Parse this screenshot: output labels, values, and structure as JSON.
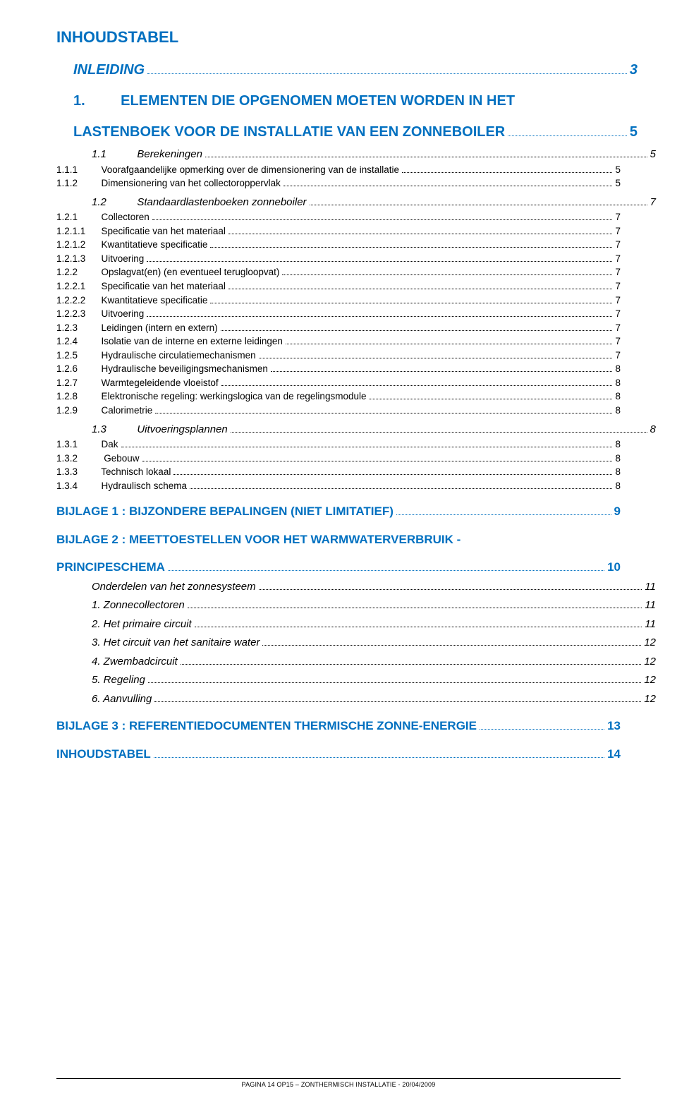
{
  "title": "INHOUDSTABEL",
  "footer": "PAGINA 14 OP15 – ZONTHERMISCH INSTALLATIE - 20/04/2009",
  "colors": {
    "accent": "#0070c0",
    "text": "#000000",
    "background": "#ffffff"
  },
  "toc": [
    {
      "cls": "lvl-h1 blue italic",
      "num": "",
      "label": "INLEIDING",
      "page": "3",
      "leaderBlue": true
    },
    {
      "cls": "lvl-h1 blue",
      "num": "1.",
      "label": "ELEMENTEN DIE OPGENOMEN MOETEN WORDEN IN HET",
      "nobreak": true
    },
    {
      "cls": "lvl-h1 blue",
      "num": "",
      "label": "LASTENBOEK VOOR DE INSTALLATIE VAN EEN ZONNEBOILER",
      "page": "5",
      "leaderBlue": true
    },
    {
      "cls": "lvl-h2 italic",
      "num": "1.1",
      "label": "Berekeningen",
      "page": "5"
    },
    {
      "cls": "lvl-body",
      "num": "1.1.1",
      "label": "Voorafgaandelijke opmerking over de dimensionering van de installatie",
      "page": "5"
    },
    {
      "cls": "lvl-body",
      "num": "1.1.2",
      "label": "Dimensionering van het collectoroppervlak",
      "page": "5"
    },
    {
      "cls": "lvl-h2 italic",
      "num": "1.2",
      "label": "Standaardlastenboeken zonneboiler",
      "page": "7"
    },
    {
      "cls": "lvl-body",
      "num": "1.2.1",
      "label": "Collectoren",
      "page": "7"
    },
    {
      "cls": "lvl-body",
      "num": "1.2.1.1",
      "label": "Specificatie van het materiaal",
      "page": "7"
    },
    {
      "cls": "lvl-body",
      "num": "1.2.1.2",
      "label": "Kwantitatieve specificatie",
      "page": "7"
    },
    {
      "cls": "lvl-body",
      "num": "1.2.1.3",
      "label": "Uitvoering",
      "page": "7"
    },
    {
      "cls": "lvl-body",
      "num": "1.2.2",
      "label": "Opslagvat(en) (en eventueel terugloopvat)",
      "page": "7"
    },
    {
      "cls": "lvl-body",
      "num": "1.2.2.1",
      "label": "Specificatie van het materiaal",
      "page": "7"
    },
    {
      "cls": "lvl-body",
      "num": "1.2.2.2",
      "label": "Kwantitatieve specificatie",
      "page": "7"
    },
    {
      "cls": "lvl-body",
      "num": "1.2.2.3",
      "label": "Uitvoering",
      "page": "7"
    },
    {
      "cls": "lvl-body",
      "num": "1.2.3",
      "label": "Leidingen (intern en extern)",
      "page": "7"
    },
    {
      "cls": "lvl-body",
      "num": "1.2.4",
      "label": "Isolatie van de interne en externe leidingen",
      "page": "7"
    },
    {
      "cls": "lvl-body",
      "num": "1.2.5",
      "label": "Hydraulische circulatiemechanismen",
      "page": "7"
    },
    {
      "cls": "lvl-body",
      "num": "1.2.6",
      "label": "Hydraulische beveiligingsmechanismen",
      "page": "8"
    },
    {
      "cls": "lvl-body",
      "num": "1.2.7",
      "label": "Warmtegeleidende vloeistof",
      "page": "8"
    },
    {
      "cls": "lvl-body",
      "num": "1.2.8",
      "label": "Elektronische regeling: werkingslogica van de regelingsmodule",
      "page": "8"
    },
    {
      "cls": "lvl-body",
      "num": "1.2.9",
      "label": "Calorimetrie",
      "page": "8"
    },
    {
      "cls": "lvl-h2 italic",
      "num": "1.3",
      "label": "Uitvoeringsplannen",
      "page": "8"
    },
    {
      "cls": "lvl-body",
      "num": "1.3.1",
      "label": "Dak",
      "page": "8"
    },
    {
      "cls": "lvl-body",
      "num": "1.3.2",
      "label": " Gebouw",
      "page": "8"
    },
    {
      "cls": "lvl-body",
      "num": "1.3.3",
      "label": "Technisch lokaal",
      "page": "8"
    },
    {
      "cls": "lvl-body",
      "num": "1.3.4",
      "label": "Hydraulisch schema",
      "page": "8"
    },
    {
      "cls": "bij-title blue",
      "num": "",
      "label": "BIJLAGE 1 : BIJZONDERE BEPALINGEN (NIET LIMITATIEF)",
      "page": "9",
      "leaderBlue": true
    },
    {
      "cls": "bij-title blue",
      "num": "",
      "label": "BIJLAGE 2 : MEETTOESTELLEN VOOR HET WARMWATERVERBRUIK -",
      "nobreak": true
    },
    {
      "cls": "bij-title blue",
      "num": "",
      "label": "PRINCIPESCHEMA",
      "page": "10",
      "leaderBlue": true
    },
    {
      "cls": "sub-italic",
      "num": "",
      "label": "Onderdelen van het zonnesysteem",
      "page": "11"
    },
    {
      "cls": "sub-italic",
      "num": "",
      "label": "1. Zonnecollectoren",
      "page": "11"
    },
    {
      "cls": "sub-italic",
      "num": "",
      "label": "2. Het primaire circuit",
      "page": "11"
    },
    {
      "cls": "sub-italic",
      "num": "",
      "label": "3. Het circuit van het sanitaire water",
      "page": "12"
    },
    {
      "cls": "sub-italic",
      "num": "",
      "label": "4. Zwembadcircuit",
      "page": "12"
    },
    {
      "cls": "sub-italic",
      "num": "",
      "label": "5. Regeling",
      "page": "12"
    },
    {
      "cls": "sub-italic",
      "num": "",
      "label": "6. Aanvulling",
      "page": "12"
    },
    {
      "cls": "bij-title blue",
      "num": "",
      "label": "BIJLAGE 3 : REFERENTIEDOCUMENTEN THERMISCHE ZONNE-ENERGIE",
      "page": "13",
      "leaderBlue": true
    },
    {
      "cls": "bij-title blue",
      "num": "",
      "label": "INHOUDSTABEL",
      "page": "14",
      "leaderBlue": true
    }
  ]
}
